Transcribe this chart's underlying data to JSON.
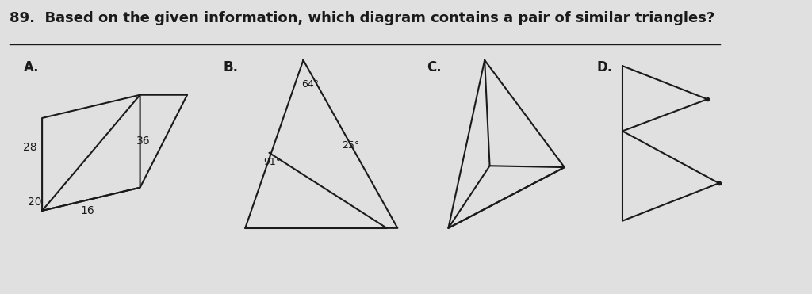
{
  "title": "89.  Based on the given information, which diagram contains a pair of similar triangles?",
  "title_fontsize": 13,
  "bg_color": "#e0e0e0",
  "line_color": "#1a1a1a",
  "label_color": "#1a1a1a",
  "A_label": "A.",
  "B_label": "B.",
  "C_label": "C.",
  "D_label": "D."
}
